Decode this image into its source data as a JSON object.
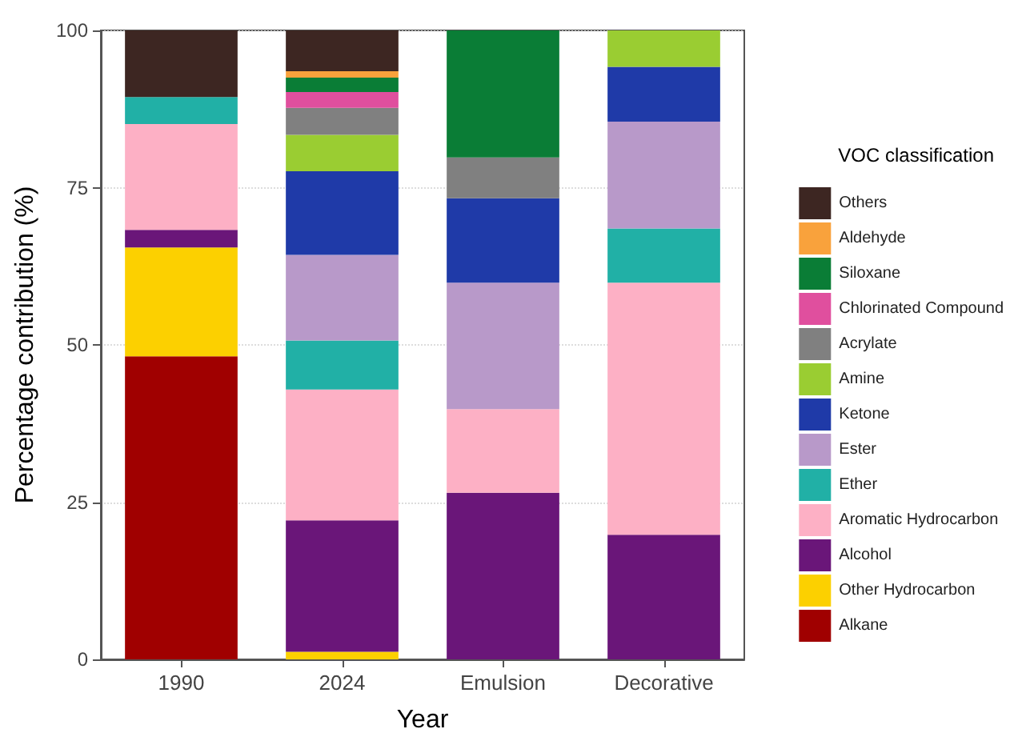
{
  "chart_data": {
    "type": "bar",
    "stacked": true,
    "xlabel": "Year",
    "ylabel": "Percentage contribution (%)",
    "legend_title": "VOC classification",
    "legend": "right",
    "grid": "y",
    "categories": [
      "1990",
      "2024",
      "Emulsion",
      "Decorative"
    ],
    "ylim": [
      0,
      100
    ],
    "yticks": [
      0,
      25,
      50,
      75,
      100
    ],
    "series": [
      {
        "name": "Alkane",
        "color": "#a00000",
        "values": [
          48.2,
          null,
          null,
          null
        ]
      },
      {
        "name": "Other Hydrocarbon",
        "color": "#fcd000",
        "values": [
          17.3,
          1.2,
          null,
          null
        ]
      },
      {
        "name": "Alcohol",
        "color": "#6a1679",
        "values": [
          2.8,
          20.9,
          26.5,
          19.8
        ]
      },
      {
        "name": "Aromatic Hydrocarbon",
        "color": "#fdb0c5",
        "values": [
          16.8,
          20.8,
          13.3,
          40.1
        ]
      },
      {
        "name": "Ether",
        "color": "#21b0a6",
        "values": [
          4.3,
          7.8,
          null,
          8.6
        ]
      },
      {
        "name": "Ester",
        "color": "#b899c9",
        "values": [
          null,
          13.6,
          20.1,
          17.0
        ]
      },
      {
        "name": "Ketone",
        "color": "#1f3aa8",
        "values": [
          null,
          13.3,
          13.4,
          8.7
        ]
      },
      {
        "name": "Amine",
        "color": "#9acd32",
        "values": [
          null,
          5.8,
          null,
          5.8
        ]
      },
      {
        "name": "Acrylate",
        "color": "#808080",
        "values": [
          null,
          4.3,
          6.5,
          null
        ]
      },
      {
        "name": "Chlorinated Compound",
        "color": "#e04f9e",
        "values": [
          null,
          2.5,
          null,
          null
        ]
      },
      {
        "name": "Siloxane",
        "color": "#0a7d36",
        "values": [
          null,
          2.3,
          20.2,
          null
        ]
      },
      {
        "name": "Aldehyde",
        "color": "#f9a23c",
        "values": [
          null,
          1.0,
          null,
          null
        ]
      },
      {
        "name": "Others",
        "color": "#3d2622",
        "values": [
          10.6,
          6.5,
          null,
          null
        ]
      }
    ]
  }
}
